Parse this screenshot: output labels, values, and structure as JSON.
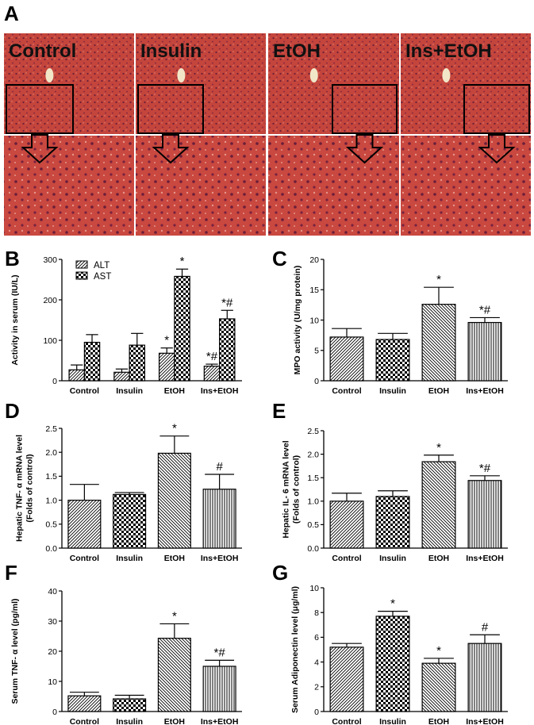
{
  "figure_label": "A",
  "micrographs": {
    "labels": [
      "Control",
      "Insulin",
      "EtOH",
      "Ins+EtOH"
    ]
  },
  "chart_data": [
    {
      "panel": "B",
      "type": "bar",
      "categories": [
        "Control",
        "Insulin",
        "EtOH",
        "Ins+EtOH"
      ],
      "ylabel": "Activity in serum (IU/L)",
      "ylim": [
        0,
        300
      ],
      "yticks": [
        0,
        100,
        200,
        300
      ],
      "legend": "top-left",
      "series": [
        {
          "name": "ALT",
          "pattern": "diag",
          "values": [
            27,
            21,
            68,
            36
          ],
          "errors": [
            12,
            8,
            13,
            5
          ],
          "annotations": [
            "",
            "",
            "*",
            "*#"
          ]
        },
        {
          "name": "AST",
          "pattern": "check",
          "values": [
            95,
            88,
            258,
            153
          ],
          "errors": [
            19,
            29,
            18,
            21
          ],
          "annotations": [
            "",
            "",
            "*",
            "*#"
          ]
        }
      ]
    },
    {
      "panel": "C",
      "type": "bar",
      "categories": [
        "Control",
        "Insulin",
        "EtOH",
        "Ins+EtOH"
      ],
      "ylabel": "MPO activity (U/mg protein)",
      "ylim": [
        0,
        20
      ],
      "yticks": [
        0,
        5,
        10,
        15,
        20
      ],
      "series": [
        {
          "patterns": [
            "diag",
            "check",
            "diagrev",
            "vert"
          ],
          "values": [
            7.2,
            6.8,
            12.6,
            9.6
          ],
          "errors": [
            1.4,
            1.0,
            2.8,
            0.8
          ],
          "annotations": [
            "",
            "",
            "*",
            "*#"
          ]
        }
      ]
    },
    {
      "panel": "D",
      "type": "bar",
      "categories": [
        "Control",
        "Insulin",
        "EtOH",
        "Ins+EtOH"
      ],
      "ylabel": "Hepatic TNF- α mRNA level (Folds of control)",
      "ylabel_lines": [
        "Hepatic TNF- α mRNA level",
        "(Folds of control)"
      ],
      "ylim": [
        0,
        2.5
      ],
      "yticks": [
        "0.0",
        "0.5",
        "1.0",
        "1.5",
        "2.0",
        "2.5"
      ],
      "series": [
        {
          "patterns": [
            "diag",
            "check",
            "diagrev",
            "vert"
          ],
          "values": [
            1.0,
            1.12,
            1.98,
            1.23
          ],
          "errors": [
            0.33,
            0.04,
            0.36,
            0.31
          ],
          "annotations": [
            "",
            "",
            "*",
            "#"
          ]
        }
      ]
    },
    {
      "panel": "E",
      "type": "bar",
      "categories": [
        "Control",
        "Insulin",
        "EtOH",
        "Ins+EtOH"
      ],
      "ylabel": "Hepatic IL- 6 mRNA level (Folds of control)",
      "ylabel_lines": [
        "Hepatic IL- 6 mRNA level",
        "(Folds of control)"
      ],
      "ylim": [
        0,
        2.5
      ],
      "yticks": [
        "0.0",
        "0.5",
        "1.0",
        "1.5",
        "2.0",
        "2.5"
      ],
      "series": [
        {
          "patterns": [
            "diag",
            "check",
            "diagrev",
            "vert"
          ],
          "values": [
            1.0,
            1.1,
            1.84,
            1.44
          ],
          "errors": [
            0.17,
            0.12,
            0.14,
            0.1
          ],
          "annotations": [
            "",
            "",
            "*",
            "*#"
          ]
        }
      ]
    },
    {
      "panel": "F",
      "type": "bar",
      "categories": [
        "Control",
        "Insulin",
        "EtOH",
        "Ins+EtOH"
      ],
      "ylabel": "Serum TNF- α level (pg/ml)",
      "ylim": [
        0,
        40
      ],
      "yticks": [
        0,
        10,
        20,
        30,
        40
      ],
      "series": [
        {
          "patterns": [
            "diag",
            "check",
            "diagrev",
            "vert"
          ],
          "values": [
            5.2,
            4.2,
            24.3,
            15.0
          ],
          "errors": [
            1.2,
            1.2,
            4.8,
            2.0
          ],
          "annotations": [
            "",
            "",
            "*",
            "*#"
          ]
        }
      ]
    },
    {
      "panel": "G",
      "type": "bar",
      "categories": [
        "Control",
        "Insulin",
        "EtOH",
        "Ins+EtOH"
      ],
      "ylabel": "Serum Adiponectin level (μg/ml)",
      "ylim": [
        0,
        10
      ],
      "yticks": [
        0,
        2,
        4,
        6,
        8,
        10
      ],
      "series": [
        {
          "patterns": [
            "diag",
            "check",
            "diagrev",
            "vert"
          ],
          "values": [
            5.2,
            7.7,
            3.9,
            5.5
          ],
          "errors": [
            0.3,
            0.4,
            0.4,
            0.7
          ],
          "annotations": [
            "",
            "*",
            "*",
            "#"
          ]
        }
      ]
    }
  ]
}
